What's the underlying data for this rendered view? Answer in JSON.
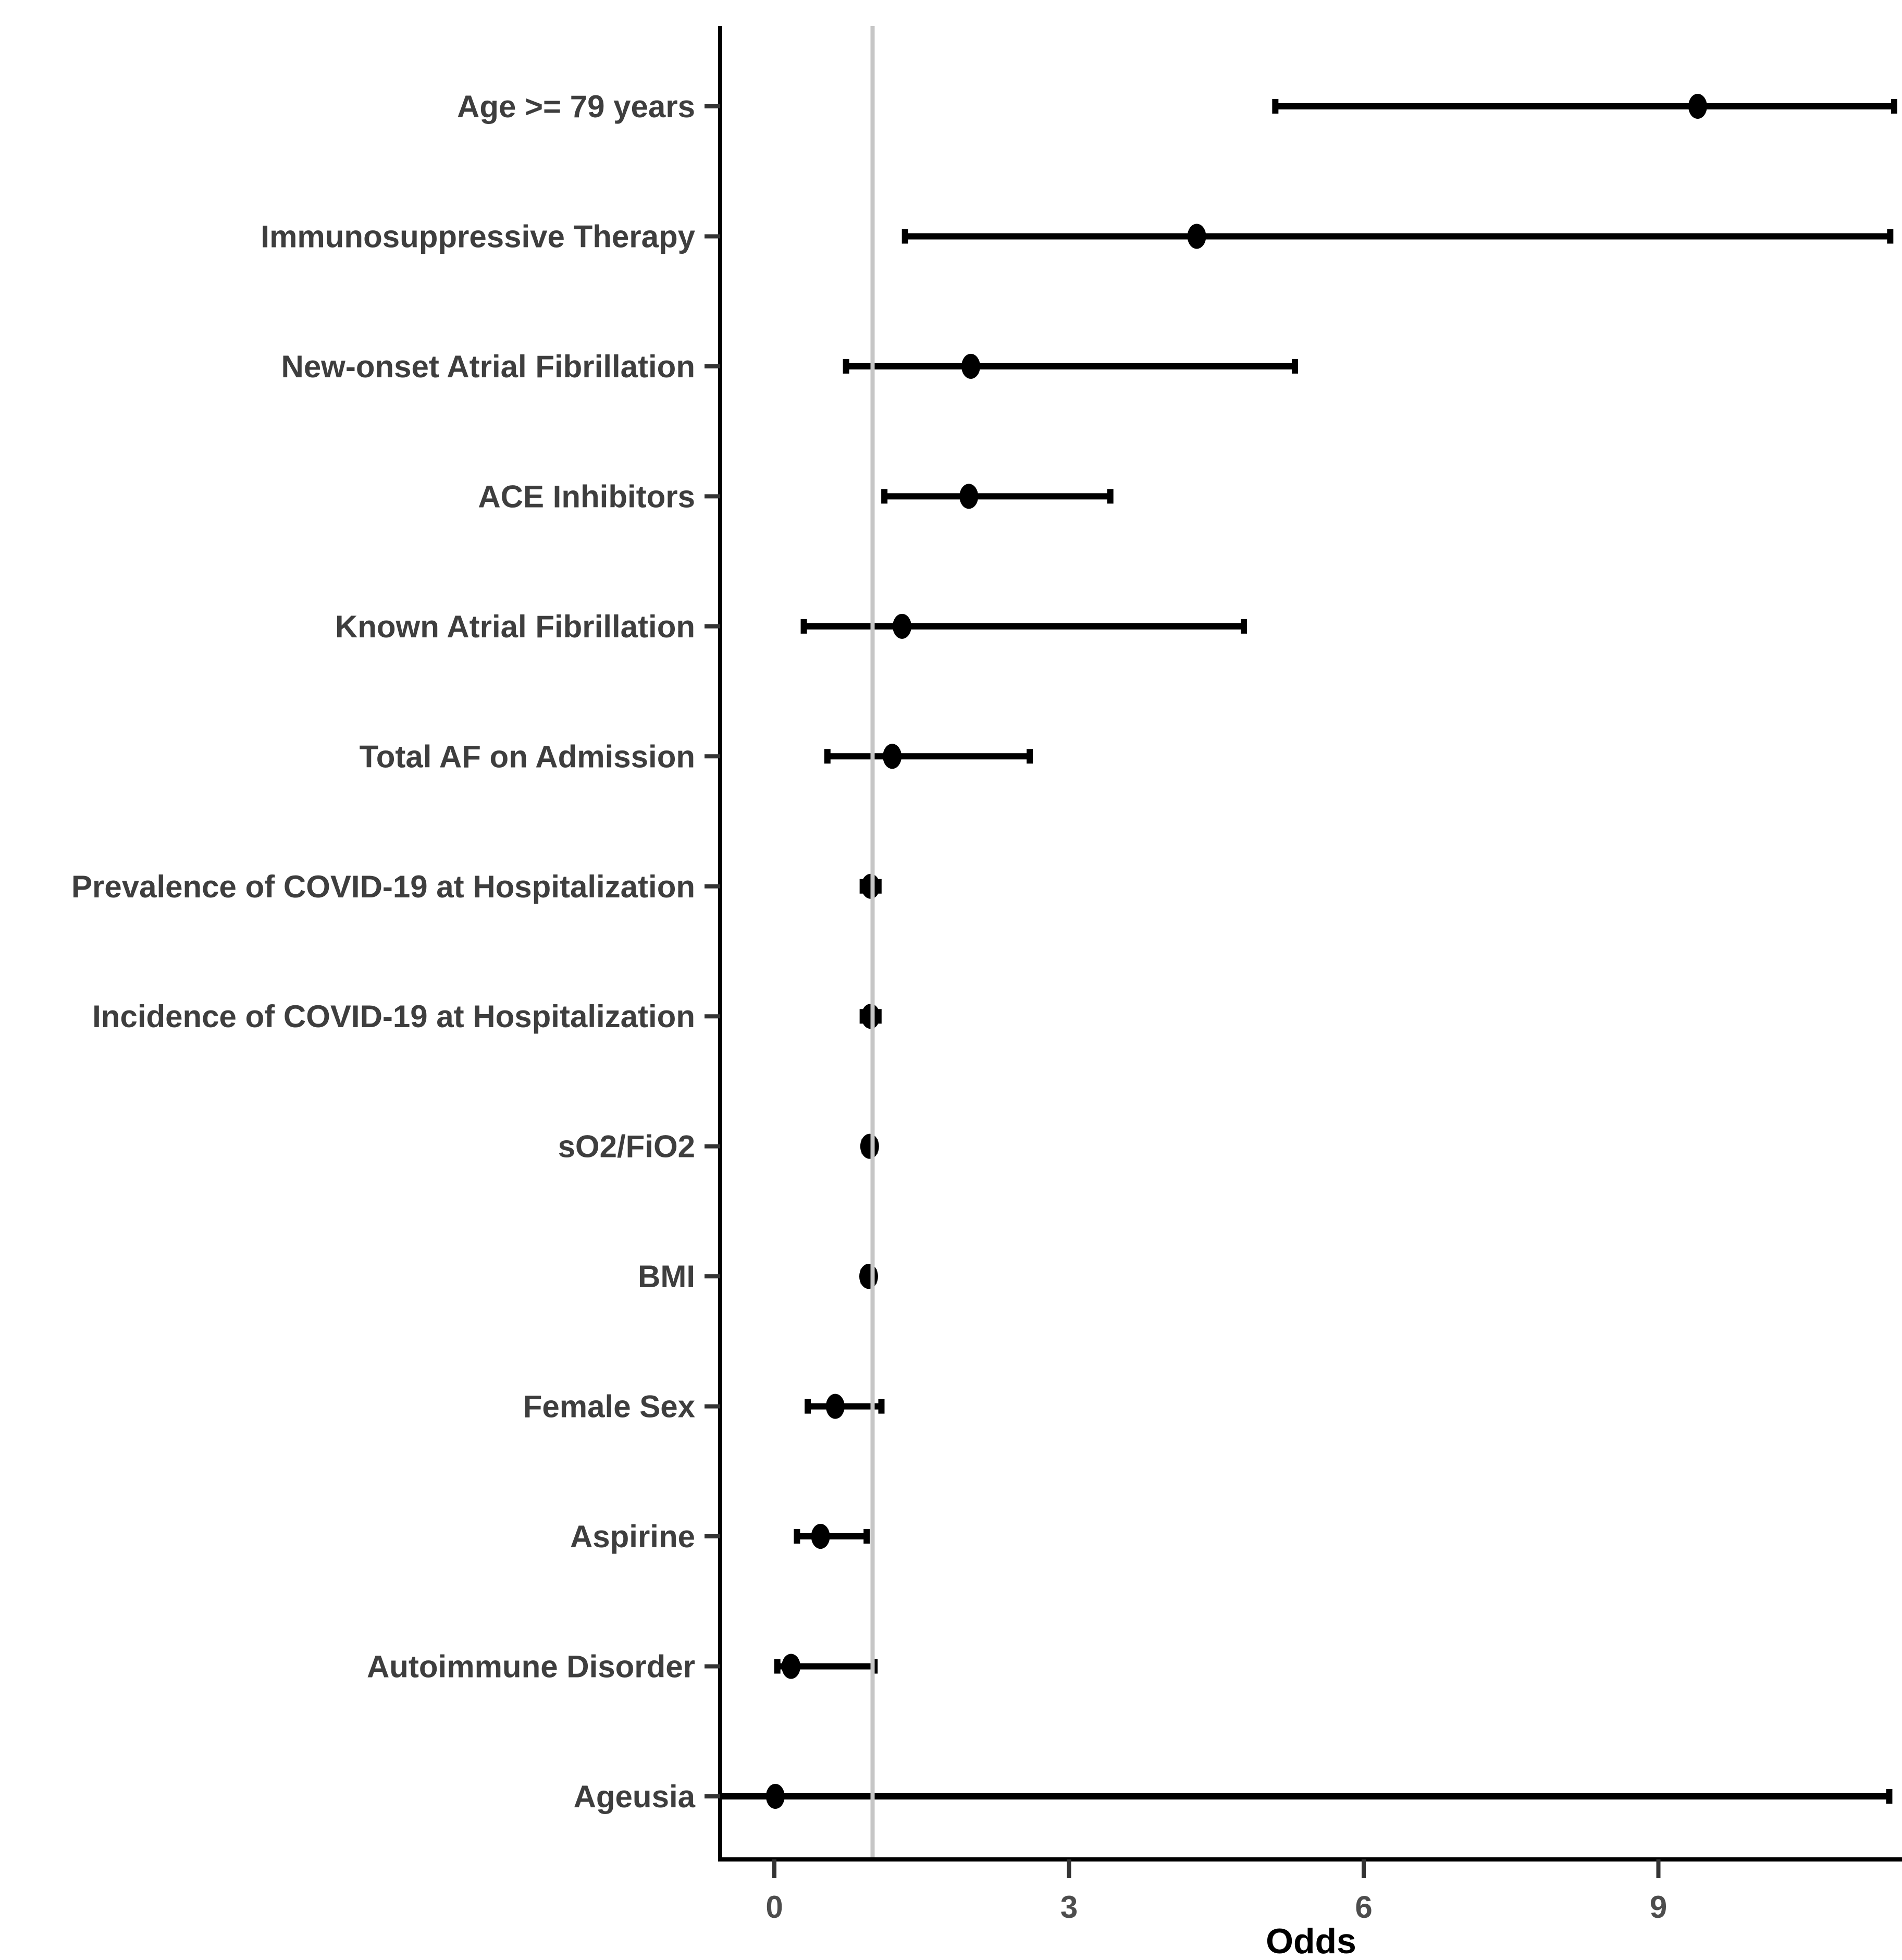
{
  "chart_data": {
    "type": "scatter",
    "subtype": "forest-plot-odds-ratios",
    "title": "",
    "xlabel": "Odds",
    "ylabel": "",
    "x_ticks": [
      0,
      3,
      6,
      9
    ],
    "xlim": [
      -0.55,
      11.48
    ],
    "reference_line_x": 1,
    "grid": false,
    "legend": false,
    "rows": [
      {
        "label": "Age >= 79 years",
        "point": 9.4,
        "ci_low": 5.1,
        "ci_high": 11.4,
        "low_clipped": false
      },
      {
        "label": "Immunosuppressive Therapy",
        "point": 4.3,
        "ci_low": 1.33,
        "ci_high": 11.36,
        "low_clipped": false
      },
      {
        "label": "New-onset Atrial Fibrillation",
        "point": 2.0,
        "ci_low": 0.73,
        "ci_high": 5.3,
        "low_clipped": false
      },
      {
        "label": "ACE Inhibitors",
        "point": 1.98,
        "ci_low": 1.12,
        "ci_high": 3.42,
        "low_clipped": false
      },
      {
        "label": "Known Atrial Fibrillation",
        "point": 1.3,
        "ci_low": 0.3,
        "ci_high": 4.78,
        "low_clipped": false
      },
      {
        "label": "Total AF on Admission",
        "point": 1.2,
        "ci_low": 0.54,
        "ci_high": 2.6,
        "low_clipped": false
      },
      {
        "label": "Prevalence of COVID-19 at Hospitalization",
        "point": 0.98,
        "ci_low": 0.9,
        "ci_high": 1.06,
        "low_clipped": false
      },
      {
        "label": "Incidence of COVID-19 at Hospitalization",
        "point": 0.98,
        "ci_low": 0.9,
        "ci_high": 1.06,
        "low_clipped": false
      },
      {
        "label": "sO2/FiO2",
        "point": 0.97,
        "ci_low": 0.92,
        "ci_high": 1.02,
        "low_clipped": false
      },
      {
        "label": "BMI",
        "point": 0.96,
        "ci_low": 0.91,
        "ci_high": 1.01,
        "low_clipped": false
      },
      {
        "label": "Female Sex",
        "point": 0.62,
        "ci_low": 0.34,
        "ci_high": 1.09,
        "low_clipped": false
      },
      {
        "label": "Aspirine",
        "point": 0.47,
        "ci_low": 0.23,
        "ci_high": 0.94,
        "low_clipped": false
      },
      {
        "label": "Autoimmune Disorder",
        "point": 0.17,
        "ci_low": 0.03,
        "ci_high": 1.02,
        "low_clipped": false
      },
      {
        "label": "Ageusia",
        "point": 0.01,
        "ci_low": -0.55,
        "ci_high": 11.35,
        "low_clipped": true
      }
    ],
    "colors": {
      "point": "#000000",
      "error_bar": "#000000",
      "reference_line": "#c6c6c6",
      "axis_line": "#000000",
      "tick_mark": "#333333",
      "row_label_text": "#3e3e3e",
      "tick_label_text": "#4d4d4d",
      "axis_title_text": "#000000",
      "background": "#ffffff"
    }
  }
}
